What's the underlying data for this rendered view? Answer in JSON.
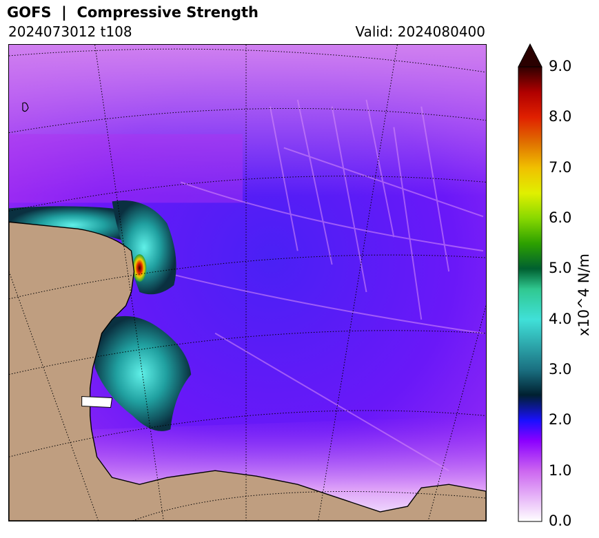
{
  "header": {
    "title": "GOFS  |  Compressive Strength",
    "run": "2024073012 t108",
    "valid": "Valid: 2024080400"
  },
  "colorbar": {
    "label": "x10^4 N/m",
    "ticks": [
      "0.0",
      "1.0",
      "2.0",
      "3.0",
      "4.0",
      "5.0",
      "6.0",
      "7.0",
      "8.0",
      "9.0"
    ],
    "range": [
      0,
      9
    ],
    "extend": "max",
    "colors": {
      "0": "#ffffff",
      "1": "#cc66f0",
      "1.6": "#8a00ff",
      "2": "#1a10ff",
      "2.5": "#002030",
      "3": "#1a6f80",
      "4": "#40e0d8",
      "4.6": "#30c890",
      "5": "#006030",
      "5.5": "#2ca000",
      "6": "#88d800",
      "6.5": "#e0f000",
      "7": "#f0c000",
      "7.5": "#e07000",
      "8": "#e02000",
      "8.5": "#b00000",
      "9": "#300000"
    }
  },
  "map": {
    "land_color": "#bf9e80",
    "ocean_color": "#7b2cf0"
  }
}
